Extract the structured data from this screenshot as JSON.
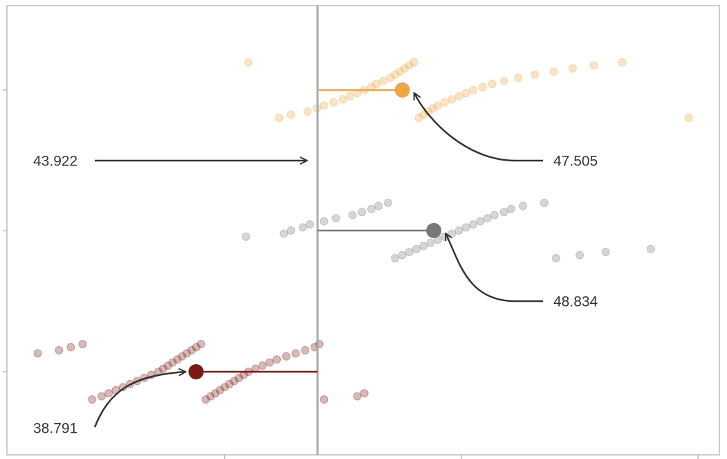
{
  "chart_data": {
    "type": "strip",
    "categories": [
      null,
      null,
      null
    ],
    "reference": 43.922,
    "xlim": [
      30.8,
      60.9
    ],
    "xticks": [
      40,
      50,
      60
    ],
    "series": [
      {
        "color": "#f0a540",
        "mean": 47.505,
        "values": [
          41,
          42.3,
          42.8,
          43.5,
          43.9,
          44.2,
          44.6,
          45.0,
          45.3,
          45.6,
          45.9,
          46.2,
          46.4,
          46.7,
          47.0,
          47.2,
          47.4,
          47.6,
          47.8,
          48.0,
          48.2,
          48.4,
          48.6,
          48.8,
          49.0,
          49.3,
          49.6,
          49.9,
          50.2,
          50.5,
          50.9,
          51.3,
          51.8,
          52.4,
          53.1,
          53.9,
          54.7,
          55.6,
          56.8,
          59.6
        ]
      },
      {
        "color": "#777777",
        "mean": 48.834,
        "values": [
          40.9,
          42.5,
          42.8,
          43.3,
          43.6,
          44.2,
          44.7,
          45.4,
          45.8,
          46.2,
          46.5,
          46.9,
          47.2,
          47.5,
          47.8,
          48.1,
          48.4,
          48.7,
          49.0,
          49.3,
          49.6,
          49.9,
          50.2,
          50.5,
          50.8,
          51.1,
          51.4,
          51.8,
          52.1,
          52.6,
          53.5,
          54.0,
          55.0,
          56.1,
          58.0
        ]
      },
      {
        "color": "#7a1c14",
        "mean": 38.791,
        "values": [
          32.1,
          33.0,
          33.5,
          34.0,
          34.4,
          34.8,
          35.1,
          35.4,
          35.7,
          36.0,
          36.3,
          36.6,
          36.9,
          37.2,
          37.4,
          37.6,
          37.8,
          38.0,
          38.2,
          38.4,
          38.6,
          38.8,
          39.0,
          39.2,
          39.4,
          39.6,
          39.8,
          40.0,
          40.2,
          40.4,
          40.6,
          40.8,
          41.0,
          41.3,
          41.6,
          41.9,
          42.2,
          42.6,
          43.0,
          43.4,
          43.8,
          44.0,
          44.2,
          45.6,
          45.9
        ]
      }
    ]
  }
}
